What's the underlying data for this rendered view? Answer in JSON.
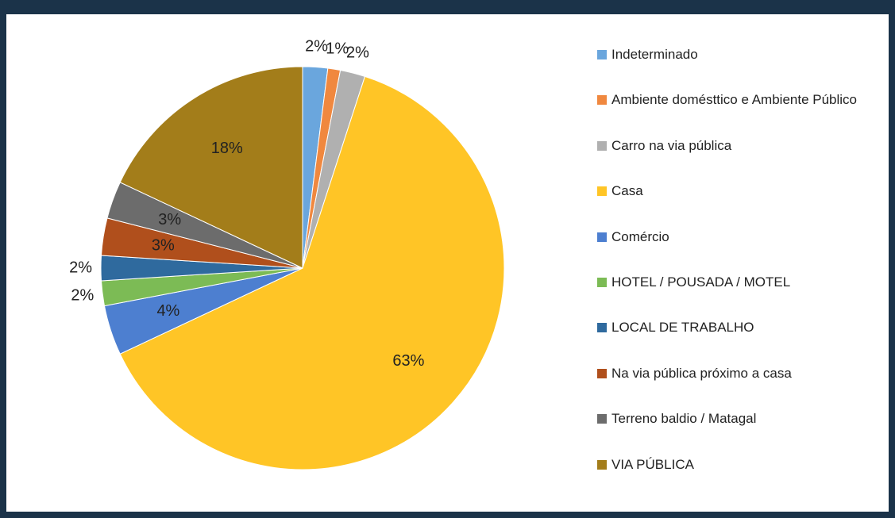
{
  "chart_data": {
    "type": "pie",
    "categories": [
      "Indeterminado",
      "Ambiente domésttico e Ambiente Público",
      "Carro na via pública",
      "Casa",
      "Comércio",
      "HOTEL / POUSADA / MOTEL",
      "LOCAL DE TRABALHO",
      "Na via pública próximo a casa",
      "Terreno baldio / Matagal",
      "VIA PÚBLICA"
    ],
    "values": [
      2,
      1,
      2,
      63,
      4,
      2,
      2,
      3,
      3,
      18
    ],
    "value_labels": [
      "2%",
      "1%",
      "2%",
      "63%",
      "4%",
      "2%",
      "2%",
      "3%",
      "3%",
      "18%"
    ],
    "colors": [
      "#6aa6dd",
      "#f0883f",
      "#b0b0b0",
      "#ffc526",
      "#4d7fd0",
      "#7cbb55",
      "#2f6a9e",
      "#b04f1c",
      "#6c6c6c",
      "#a37d1a"
    ],
    "legend": "right"
  }
}
